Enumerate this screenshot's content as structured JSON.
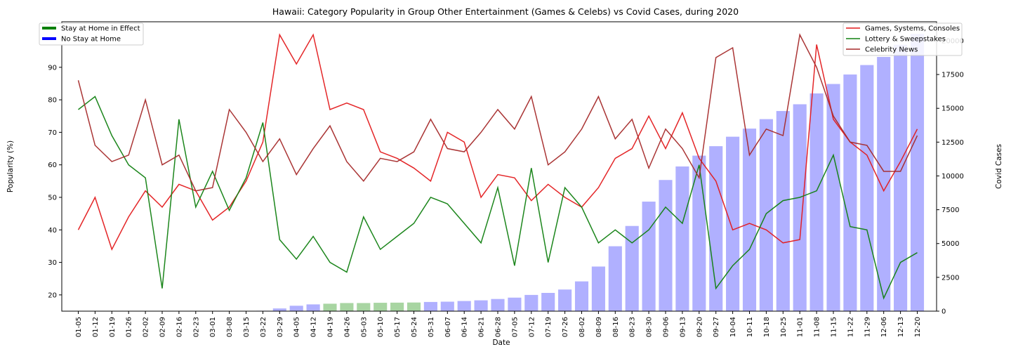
{
  "chart_data": {
    "type": "bar+line",
    "title": "Hawaii: Category Popularity in Group Other Entertainment (Games & Celebs) vs Covid Cases, during 2020",
    "xlabel": "Date",
    "ylabel_left": "Popularity (%)",
    "ylabel_right": "Covid Cases",
    "ylim_left": [
      15,
      104
    ],
    "ylim_right": [
      0,
      21400
    ],
    "yticks_left": [
      20,
      30,
      40,
      50,
      60,
      70,
      80,
      90,
      100
    ],
    "yticks_right": [
      0,
      2500,
      5000,
      7500,
      10000,
      12500,
      15000,
      17500,
      20000
    ],
    "ytick_labels_right": [
      "0",
      "2500",
      "5000",
      "7500",
      "10000",
      "12500",
      "15000",
      "17500",
      "20000"
    ],
    "grid": false,
    "categories": [
      "01-05",
      "01-12",
      "01-19",
      "01-26",
      "02-02",
      "02-09",
      "02-16",
      "02-23",
      "03-01",
      "03-08",
      "03-15",
      "03-22",
      "03-29",
      "04-05",
      "04-12",
      "04-19",
      "04-26",
      "05-03",
      "05-10",
      "05-17",
      "05-24",
      "05-31",
      "06-07",
      "06-14",
      "06-21",
      "06-28",
      "07-05",
      "07-12",
      "07-19",
      "07-26",
      "08-02",
      "08-09",
      "08-16",
      "08-23",
      "08-30",
      "09-06",
      "09-13",
      "09-20",
      "09-27",
      "10-04",
      "10-11",
      "10-18",
      "10-25",
      "11-01",
      "11-08",
      "11-15",
      "11-22",
      "11-29",
      "12-06",
      "12-13",
      "12-20"
    ],
    "covid_cases": [
      0,
      0,
      0,
      0,
      0,
      0,
      0,
      0,
      0,
      0,
      0,
      30,
      200,
      400,
      500,
      550,
      600,
      600,
      620,
      630,
      640,
      680,
      700,
      750,
      800,
      900,
      1000,
      1200,
      1350,
      1600,
      2200,
      3300,
      4800,
      6300,
      8100,
      9700,
      10700,
      11500,
      12200,
      12900,
      13500,
      14200,
      14800,
      15300,
      16100,
      16800,
      17500,
      18200,
      18800,
      19700,
      20500
    ],
    "bar_colors": {
      "stay_at_home": "#a8d5a2",
      "no_stay_at_home": "#b0b0ff"
    },
    "stay_at_home_weeks": [
      "04-19",
      "04-26",
      "05-03",
      "05-10",
      "05-17",
      "05-24"
    ],
    "series": [
      {
        "name": "Games, Systems, Consoles",
        "color": "#e31a1c",
        "values": [
          40,
          50,
          34,
          44,
          52,
          47,
          54,
          52,
          43,
          47,
          55,
          67,
          100,
          91,
          100,
          77,
          79,
          77,
          64,
          62,
          59,
          55,
          70,
          67,
          50,
          57,
          56,
          49,
          54,
          50,
          47,
          53,
          62,
          65,
          75,
          65,
          76,
          62,
          55,
          40,
          42,
          40,
          36,
          37,
          97,
          74,
          67,
          63,
          52,
          61,
          71
        ]
      },
      {
        "name": "Lottery & Sweepstakes",
        "color": "#108010",
        "values": [
          77,
          81,
          69,
          60,
          56,
          22,
          74,
          47,
          58,
          46,
          56,
          73,
          37,
          31,
          38,
          30,
          27,
          44,
          34,
          38,
          42,
          50,
          48,
          42,
          36,
          53,
          29,
          59,
          30,
          53,
          47,
          36,
          40,
          36,
          40,
          47,
          42,
          60,
          22,
          29,
          34,
          45,
          49,
          50,
          52,
          63,
          41,
          40,
          19,
          30,
          33
        ]
      },
      {
        "name": "Celebrity News",
        "color": "#a52a2a",
        "values": [
          86,
          66,
          61,
          63,
          80,
          60,
          63,
          52,
          53,
          77,
          70,
          61,
          68,
          57,
          65,
          72,
          61,
          55,
          62,
          61,
          64,
          74,
          65,
          64,
          70,
          77,
          71,
          81,
          60,
          64,
          71,
          81,
          68,
          74,
          59,
          71,
          65,
          56,
          93,
          96,
          63,
          71,
          69,
          100,
          90,
          75,
          67,
          66,
          58,
          58,
          69
        ]
      }
    ],
    "legend_left": [
      {
        "label": "Stay at Home in Effect",
        "color": "#008000"
      },
      {
        "label": "No Stay at Home",
        "color": "#0000ff"
      }
    ],
    "legend_left_placement": "top-left",
    "legend_right_placement": "top-right"
  }
}
